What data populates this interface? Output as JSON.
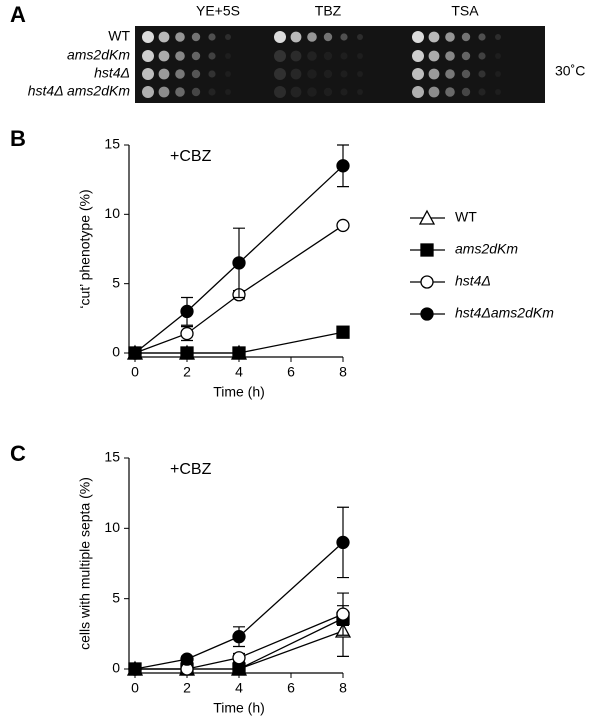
{
  "panel_a": {
    "panel": "A",
    "columns": [
      "YE+5S",
      "TBZ",
      "TSA"
    ],
    "strains": [
      "WT",
      "ams2dKm",
      "hst4Δ",
      "hst4Δ ams2dKm"
    ],
    "temperature": "30˚C"
  },
  "chart_data": [
    {
      "type": "line",
      "panel": "B",
      "annotation": "+CBZ",
      "xlabel": "Time (h)",
      "ylabel": "‘cut’ phenotype  (%)",
      "x": [
        0,
        2,
        4,
        8
      ],
      "xlim": [
        0,
        8
      ],
      "xticks": [
        0,
        2,
        4,
        6,
        8
      ],
      "ylim": [
        0,
        15
      ],
      "yticks": [
        0,
        5,
        10,
        15
      ],
      "legend": "right",
      "series": [
        {
          "name": "WT",
          "color": "#000000",
          "marker": "triangle-open",
          "values": [
            0,
            0,
            0,
            null
          ],
          "errors": [
            null,
            null,
            null,
            null
          ]
        },
        {
          "name": "ams2dKm",
          "color": "#000000",
          "marker": "square-filled",
          "values": [
            0,
            0,
            0,
            1.5
          ],
          "errors": [
            null,
            null,
            null,
            0.4
          ]
        },
        {
          "name": "hst4Δ",
          "color": "#000000",
          "marker": "circle-open",
          "values": [
            0,
            1.4,
            4.2,
            9.2
          ],
          "errors": [
            null,
            0.5,
            0.3,
            null
          ]
        },
        {
          "name": "hst4Δams2dKm",
          "color": "#000000",
          "marker": "circle-filled",
          "values": [
            0,
            3,
            6.5,
            13.5
          ],
          "errors": [
            null,
            1,
            2.5,
            1.5
          ]
        }
      ]
    },
    {
      "type": "line",
      "panel": "C",
      "annotation": "+CBZ",
      "xlabel": "Time (h)",
      "ylabel": "cells with multiple septa (%)",
      "x": [
        0,
        2,
        4,
        8
      ],
      "xlim": [
        0,
        8
      ],
      "xticks": [
        0,
        2,
        4,
        6,
        8
      ],
      "ylim": [
        0,
        15
      ],
      "yticks": [
        0,
        5,
        10,
        15
      ],
      "series": [
        {
          "color": "#000000",
          "marker": "triangle-open",
          "values": [
            0,
            0,
            0,
            2.7
          ],
          "errors": [
            null,
            null,
            null,
            1.8
          ]
        },
        {
          "color": "#000000",
          "marker": "square-filled",
          "values": [
            0,
            0,
            0,
            3.6
          ],
          "errors": [
            null,
            null,
            null,
            0.5
          ]
        },
        {
          "color": "#000000",
          "marker": "circle-open",
          "values": [
            0,
            0,
            0.8,
            3.9
          ],
          "errors": [
            null,
            null,
            0.3,
            1.5
          ]
        },
        {
          "color": "#000000",
          "marker": "circle-filled",
          "values": [
            0,
            0.7,
            2.3,
            9
          ],
          "errors": [
            null,
            0.2,
            0.7,
            2.5
          ]
        }
      ]
    }
  ]
}
